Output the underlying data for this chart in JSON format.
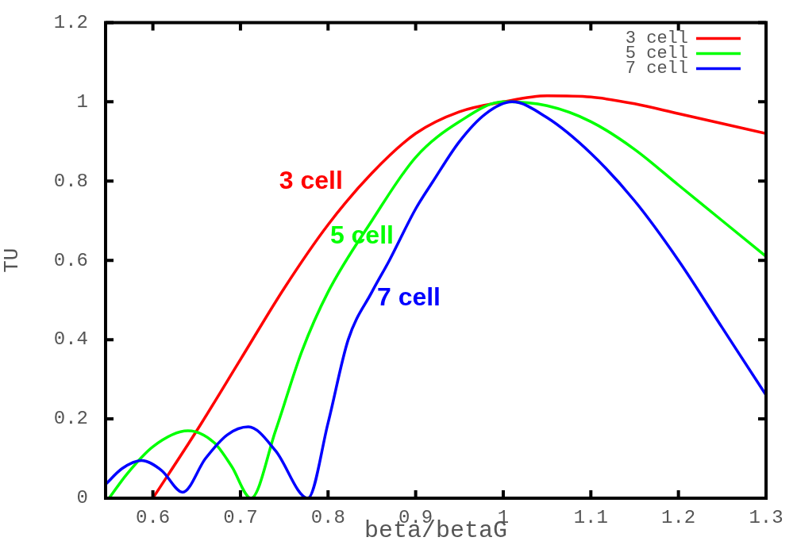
{
  "chart_data": {
    "type": "line",
    "xlabel": "beta/betaG",
    "ylabel": "TU",
    "xlim": [
      0.546,
      1.3
    ],
    "xticks": [
      0.6,
      0.7,
      0.8,
      0.9,
      1,
      1.1,
      1.2,
      1.3
    ],
    "ylim": [
      0,
      1.2
    ],
    "yticks": [
      0,
      0.2,
      0.4,
      0.6,
      0.8,
      1,
      1.2
    ],
    "grid": false,
    "legend": "top right",
    "marker": "none",
    "line_style": "solid",
    "series": [
      {
        "name": "3 cell",
        "color": "#ff0000",
        "x": [
          0.6,
          0.65,
          0.7,
          0.75,
          0.8,
          0.85,
          0.9,
          0.95,
          1.0,
          1.05,
          1.1,
          1.15,
          1.2,
          1.25,
          1.3
        ],
        "values": [
          0,
          0.17,
          0.35,
          0.53,
          0.69,
          0.82,
          0.92,
          0.975,
          1.0,
          1.015,
          1.012,
          0.995,
          0.97,
          0.945,
          0.92
        ]
      },
      {
        "name": "5 cell",
        "color": "#00ff00",
        "x": [
          0.55,
          0.57,
          0.6,
          0.64,
          0.67,
          0.69,
          0.712,
          0.74,
          0.77,
          0.8,
          0.85,
          0.9,
          0.95,
          1.0,
          1.05,
          1.1,
          1.15,
          1.2,
          1.25,
          1.3
        ],
        "values": [
          0,
          0.06,
          0.13,
          0.17,
          0.14,
          0.08,
          0,
          0.17,
          0.37,
          0.52,
          0.7,
          0.86,
          0.95,
          1.0,
          0.99,
          0.95,
          0.88,
          0.79,
          0.7,
          0.61
        ]
      },
      {
        "name": "7 cell",
        "color": "#0000ff",
        "x": [
          0.546,
          0.565,
          0.587,
          0.61,
          0.634,
          0.66,
          0.685,
          0.709,
          0.74,
          0.777,
          0.8,
          0.823,
          0.85,
          0.87,
          0.9,
          0.92,
          0.95,
          0.98,
          1.01,
          1.05,
          1.1,
          1.15,
          1.2,
          1.25,
          1.3
        ],
        "values": [
          0.035,
          0.075,
          0.095,
          0.07,
          0.015,
          0.1,
          0.16,
          0.18,
          0.12,
          0,
          0.19,
          0.4,
          0.52,
          0.6,
          0.73,
          0.8,
          0.9,
          0.97,
          1.0,
          0.96,
          0.87,
          0.75,
          0.6,
          0.43,
          0.26
        ]
      }
    ],
    "annotations": [
      "3 cell",
      "5 cell",
      "7 cell"
    ]
  }
}
